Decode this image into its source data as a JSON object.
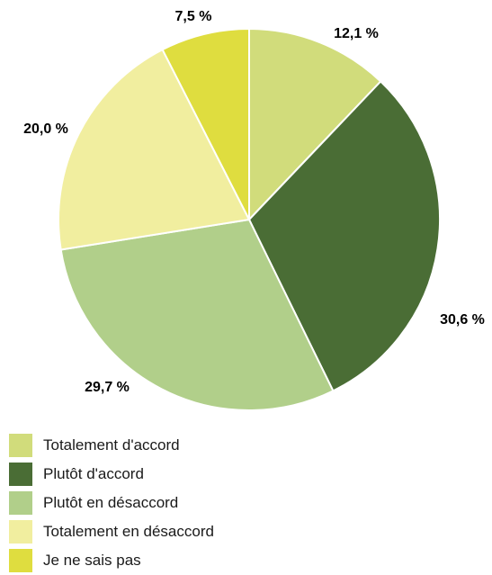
{
  "chart_data": {
    "type": "pie",
    "title": "",
    "start_angle": "top",
    "direction": "clockwise",
    "slices": [
      {
        "label": "Totalement d'accord",
        "value": 12.1,
        "value_label": "12,1 %",
        "color": "#d1dc7b"
      },
      {
        "label": "Plutôt d'accord",
        "value": 30.6,
        "value_label": "30,6 %",
        "color": "#4a6d35"
      },
      {
        "label": "Plutôt en désaccord",
        "value": 29.7,
        "value_label": "29,7 %",
        "color": "#b1cf8a"
      },
      {
        "label": "Totalement en désaccord",
        "value": 20.0,
        "value_label": "20,0 %",
        "color": "#f1ee9f"
      },
      {
        "label": "Je ne sais pas",
        "value": 7.5,
        "value_label": "7,5 %",
        "color": "#dfdd3f"
      }
    ],
    "legend": {
      "placement": "bottom-left"
    }
  }
}
